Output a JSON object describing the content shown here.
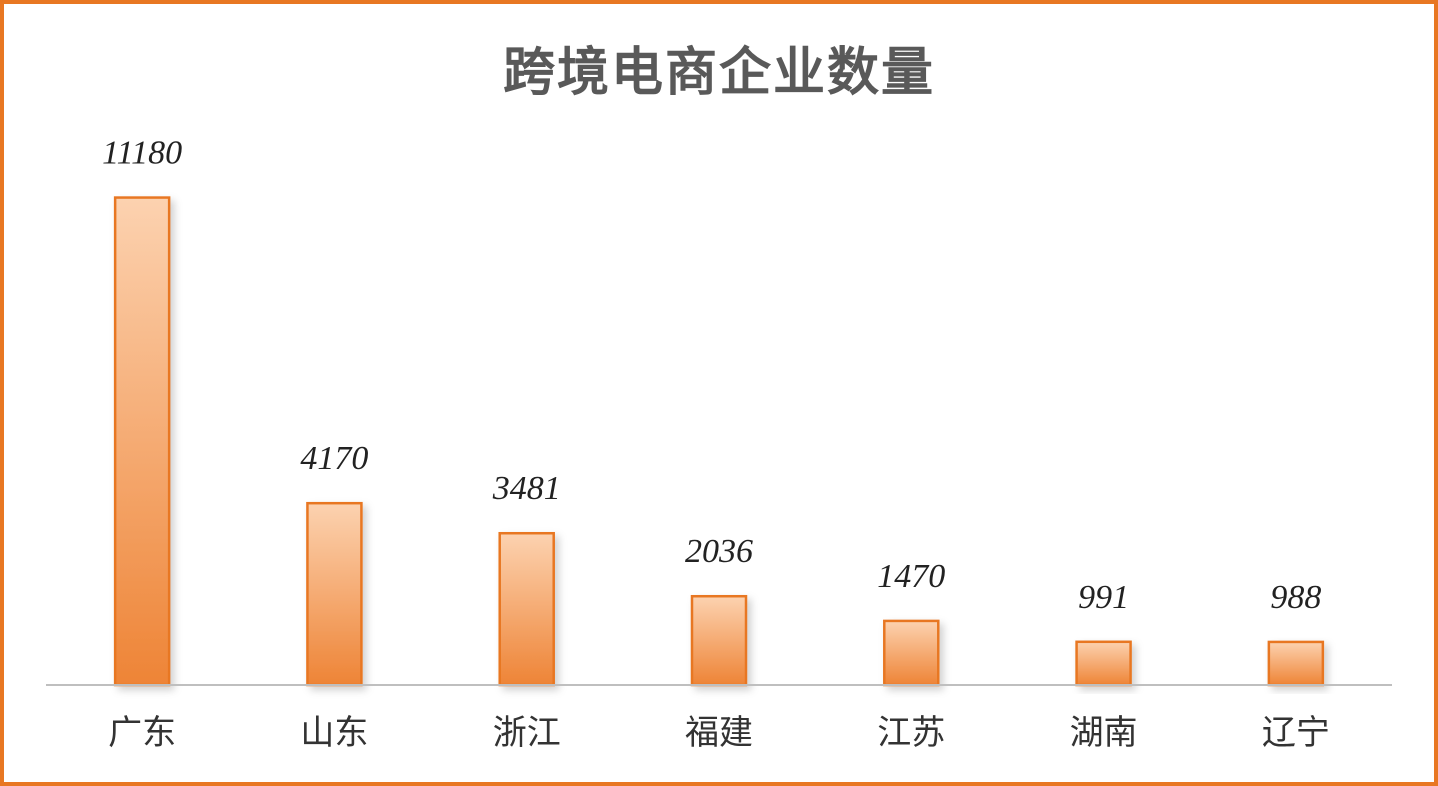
{
  "chart_data": {
    "type": "bar",
    "title": "跨境电商企业数量",
    "categories": [
      "广东",
      "山东",
      "浙江",
      "福建",
      "江苏",
      "湖南",
      "辽宁"
    ],
    "values": [
      11180,
      4170,
      3481,
      2036,
      1470,
      991,
      988
    ],
    "ylim": [
      0,
      12500
    ],
    "grid": false,
    "legend": "none",
    "bar_color": "#f08a3c",
    "bar_color_light": "#fcd2b0",
    "border_color": "#e87722"
  }
}
